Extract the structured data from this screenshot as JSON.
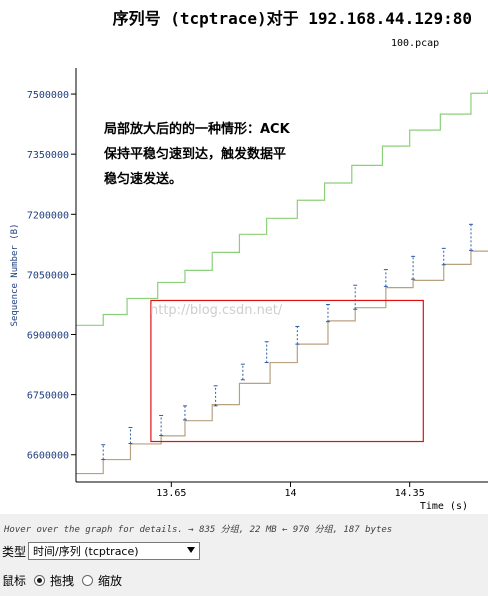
{
  "title": "序列号 (tcptrace)对于 192.168.44.129:80",
  "subtitle": "100.pcap",
  "annotation_lines": [
    "局部放大后的的一种情形：ACK",
    "保持平稳匀速到达，触发数据平",
    "稳匀速发送。"
  ],
  "watermark": "http://blog.csdn.net/",
  "status_text": "Hover over the graph for details. → 835 分组, 22 MB ← 970 分组, 187 bytes",
  "controls": {
    "type_label": "类型",
    "type_value": "时间/序列 (tcptrace)",
    "mouse_label": "鼠标",
    "drag_label": "拖拽",
    "zoom_label": "缩放",
    "selected_mode": "drag"
  },
  "colors": {
    "window_line": "#8ccf7a",
    "ack_line": "#b8a180",
    "data_segments": "#2b5fa8",
    "highlight_box": "#e01010",
    "axis_text": "#1f3f80"
  },
  "chart_data": {
    "type": "line",
    "xlabel": "Time (s)",
    "ylabel": "Sequence Number (B)",
    "xlim": [
      13.37,
      14.58
    ],
    "ylim": [
      6532000,
      7565000
    ],
    "x_ticks": [
      13.65,
      14.0,
      14.35
    ],
    "x_tick_labels": [
      "13.65",
      "14",
      "14.35"
    ],
    "y_ticks": [
      6600000,
      6750000,
      6900000,
      7050000,
      7200000,
      7350000,
      7500000
    ],
    "y_tick_labels": [
      "6600000",
      "6750000",
      "6900000",
      "7050000",
      "7200000",
      "7350000",
      "7500000"
    ],
    "series": [
      {
        "kind": "step",
        "x": [
          13.37,
          13.45,
          13.52,
          13.61,
          13.69,
          13.77,
          13.85,
          13.93,
          14.02,
          14.1,
          14.18,
          14.27,
          14.35,
          14.44,
          14.53,
          14.58
        ],
        "y": [
          6923000,
          6950000,
          6990000,
          7030000,
          7060000,
          7105000,
          7150000,
          7190000,
          7235000,
          7278000,
          7322000,
          7370000,
          7410000,
          7450000,
          7502000,
          7510000
        ]
      },
      {
        "kind": "step",
        "x": [
          13.37,
          13.45,
          13.53,
          13.62,
          13.69,
          13.77,
          13.85,
          13.94,
          14.02,
          14.11,
          14.19,
          14.28,
          14.36,
          14.45,
          14.53,
          14.58
        ],
        "y": [
          6553000,
          6588000,
          6627000,
          6647000,
          6685000,
          6725000,
          6778000,
          6830000,
          6876000,
          6934000,
          6967000,
          7017000,
          7035000,
          7075000,
          7108000,
          7110000
        ]
      },
      {
        "kind": "segments",
        "points": [
          {
            "x": 13.45,
            "y1": 6588000,
            "y2": 6625000
          },
          {
            "x": 13.53,
            "y1": 6628000,
            "y2": 6668000
          },
          {
            "x": 13.62,
            "y1": 6648000,
            "y2": 6698000
          },
          {
            "x": 13.69,
            "y1": 6687000,
            "y2": 6722000
          },
          {
            "x": 13.78,
            "y1": 6722000,
            "y2": 6772000
          },
          {
            "x": 13.86,
            "y1": 6787000,
            "y2": 6826000
          },
          {
            "x": 13.93,
            "y1": 6830000,
            "y2": 6882000
          },
          {
            "x": 14.02,
            "y1": 6876000,
            "y2": 6920000
          },
          {
            "x": 14.11,
            "y1": 6932000,
            "y2": 6975000
          },
          {
            "x": 14.19,
            "y1": 6963000,
            "y2": 7023000
          },
          {
            "x": 14.28,
            "y1": 7020000,
            "y2": 7062000
          },
          {
            "x": 14.36,
            "y1": 7038000,
            "y2": 7095000
          },
          {
            "x": 14.45,
            "y1": 7074000,
            "y2": 7115000
          },
          {
            "x": 14.53,
            "y1": 7110000,
            "y2": 7175000
          }
        ]
      }
    ],
    "highlight_box": {
      "x": [
        13.59,
        14.39
      ],
      "y": [
        6633000,
        6985000
      ]
    }
  }
}
